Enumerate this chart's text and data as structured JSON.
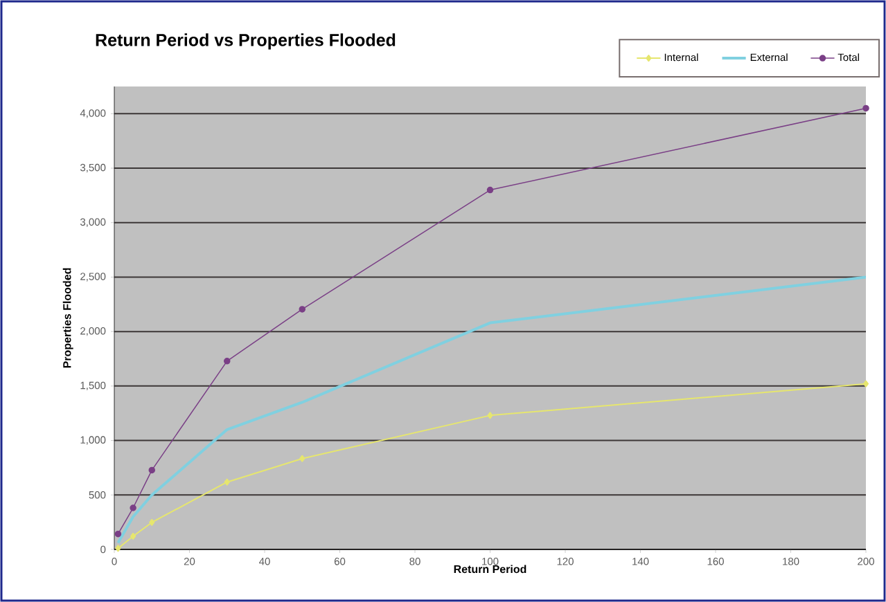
{
  "chart_data": {
    "type": "line",
    "title": "Return Period vs Properties Flooded",
    "xlabel": "Return Period",
    "ylabel": "Properties Flooded",
    "x": [
      1,
      5,
      10,
      30,
      50,
      100,
      200
    ],
    "series": [
      {
        "name": "Internal",
        "color": "#e6e66e",
        "marker": "diamond",
        "values": [
          10,
          121,
          248,
          618,
          834,
          1230,
          1520
        ]
      },
      {
        "name": "External",
        "color": "#80d0e0",
        "marker": "none",
        "values": [
          60,
          300,
          500,
          1100,
          1350,
          2080,
          2500
        ]
      },
      {
        "name": "Total",
        "color": "#7a3f86",
        "marker": "circle",
        "values": [
          142,
          381,
          728,
          1729,
          2205,
          3300,
          4050
        ]
      }
    ],
    "xlim": [
      0,
      200
    ],
    "ylim": [
      0,
      4250
    ],
    "xticks": [
      0,
      20,
      40,
      60,
      80,
      100,
      120,
      140,
      160,
      180,
      200
    ],
    "yticks": [
      0,
      {
        "value": 500,
        "label": "500"
      },
      {
        "value": 1000,
        "label": "1,000"
      },
      {
        "value": 1500,
        "label": "1,500"
      },
      {
        "value": 2000,
        "label": "2,000"
      },
      {
        "value": 2500,
        "label": "2,500"
      },
      {
        "value": 3000,
        "label": "3,000"
      },
      {
        "value": 3500,
        "label": "3,500"
      },
      {
        "value": 4000,
        "label": "4,000"
      }
    ],
    "grid": "y",
    "legend": "top right"
  }
}
